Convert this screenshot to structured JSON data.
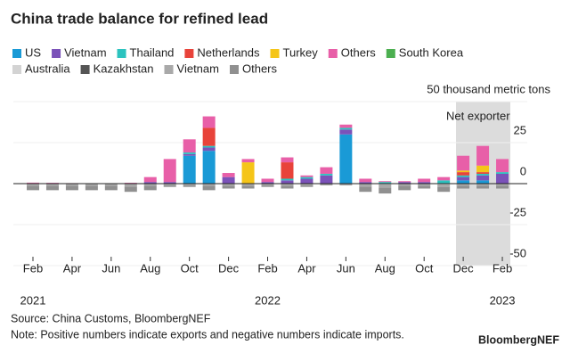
{
  "chart_data": {
    "type": "stacked-bar",
    "title": "China trade balance for refined lead",
    "categories": [
      "Feb",
      null,
      "Apr",
      null,
      "Jun",
      null,
      "Aug",
      null,
      "Oct",
      null,
      "Dec",
      null,
      "Feb",
      null,
      "Apr",
      null,
      "Jun",
      null,
      "Aug",
      null,
      "Oct",
      null,
      "Dec",
      null,
      "Feb"
    ],
    "years": [
      "2021",
      null,
      null,
      null,
      null,
      null,
      null,
      null,
      null,
      null,
      null,
      null,
      "2022",
      null,
      null,
      null,
      null,
      null,
      null,
      null,
      null,
      null,
      null,
      null,
      "2023"
    ],
    "series": [
      {
        "name": "US",
        "color": "#1a9ad6",
        "values": [
          0,
          0,
          0,
          0,
          0,
          0,
          0,
          0,
          17,
          20,
          0,
          0,
          0,
          0,
          0,
          0,
          30,
          0,
          0,
          0,
          0,
          0,
          2,
          2,
          0
        ]
      },
      {
        "name": "Vietnam",
        "color": "#7b52b9",
        "values": [
          0.3,
          0.3,
          0,
          0.2,
          0,
          0,
          1,
          1,
          1,
          2,
          4,
          0,
          1,
          2,
          3,
          5,
          3,
          1,
          0,
          1,
          1,
          0,
          2,
          3,
          6
        ]
      },
      {
        "name": "Thailand",
        "color": "#2cc3bf",
        "values": [
          0,
          0,
          0,
          0,
          0,
          0,
          0,
          0,
          1,
          1,
          0,
          0,
          0,
          1,
          1,
          1,
          1,
          0,
          1,
          0,
          0,
          2,
          1,
          1,
          1
        ]
      },
      {
        "name": "Netherlands",
        "color": "#e8433a",
        "values": [
          0,
          0,
          0,
          0,
          0,
          0,
          0,
          0,
          0,
          11,
          0,
          0,
          0,
          10,
          0,
          0,
          0,
          0,
          0,
          0,
          0,
          0,
          2,
          1,
          0
        ]
      },
      {
        "name": "Turkey",
        "color": "#f5c518",
        "values": [
          0,
          0,
          0,
          0,
          0,
          0,
          0,
          0,
          0,
          0,
          0,
          13,
          0,
          0,
          0,
          0,
          0,
          0,
          0,
          0,
          0,
          0,
          1,
          4,
          0
        ]
      },
      {
        "name": "Others",
        "color": "#e85fa8",
        "values": [
          0.3,
          0.2,
          0.3,
          0,
          0.2,
          0.5,
          3,
          14,
          8,
          7,
          2.5,
          2,
          2,
          3,
          1,
          4,
          2,
          2,
          0.5,
          0.5,
          2,
          2,
          9,
          12,
          8
        ]
      },
      {
        "name": "South Korea",
        "color": "#4caf50",
        "values": [
          0,
          0,
          0,
          0,
          0,
          0,
          0,
          0,
          0,
          0,
          0,
          0,
          0,
          0,
          0,
          0,
          0,
          0,
          0,
          0,
          0,
          0,
          0,
          0,
          0
        ]
      },
      {
        "name": "Australia",
        "color": "#d3d3d3",
        "values": [
          -0.3,
          -0.3,
          -0.3,
          -0.3,
          -0.3,
          -0.3,
          -0.3,
          0,
          0,
          -0.3,
          -0.3,
          -0.3,
          0,
          -0.3,
          0,
          0,
          0,
          -0.3,
          -0.5,
          -0.3,
          -0.3,
          -0.5,
          -0.3,
          -0.3,
          -0.3
        ]
      },
      {
        "name": "Kazakhstan",
        "color": "#555555",
        "values": [
          0,
          0,
          0,
          0,
          0,
          0,
          0,
          0,
          0,
          0,
          0,
          0,
          0,
          0,
          0,
          0,
          0,
          0,
          0,
          0,
          0,
          0,
          0,
          0,
          0
        ]
      },
      {
        "name": "Vietnam",
        "color": "#a9a9a9",
        "values": [
          -1,
          -1,
          -1,
          -1,
          -1,
          -1.5,
          -1,
          -1,
          -1,
          -1,
          -1,
          -1,
          -1,
          -1,
          -1,
          -0.5,
          -0.5,
          -1.5,
          -2,
          -1,
          -1,
          -1.5,
          -1,
          -1,
          -1
        ]
      },
      {
        "name": "Others",
        "color": "#909090",
        "values": [
          -2.7,
          -2.7,
          -2.7,
          -2.7,
          -2.7,
          -3.2,
          -2.7,
          -1,
          -1,
          -2.7,
          -1.7,
          -1.7,
          -1,
          -1.7,
          -1,
          -0.5,
          -0.5,
          -3.2,
          -3.5,
          -2.7,
          -1.7,
          -3,
          -1.7,
          -1.7,
          -1.7
        ]
      }
    ],
    "ylim": [
      -50,
      50
    ],
    "yticks": [
      {
        "value": 50,
        "label": "50 thousand metric tons"
      },
      25,
      0,
      -25,
      -50
    ],
    "annotation": "Net exporter",
    "source": "Source: China Customs, BloombergNEF",
    "note": "Note: Positive numbers indicate exports and negative numbers indicate imports.",
    "brand": "BloombergNEF"
  }
}
